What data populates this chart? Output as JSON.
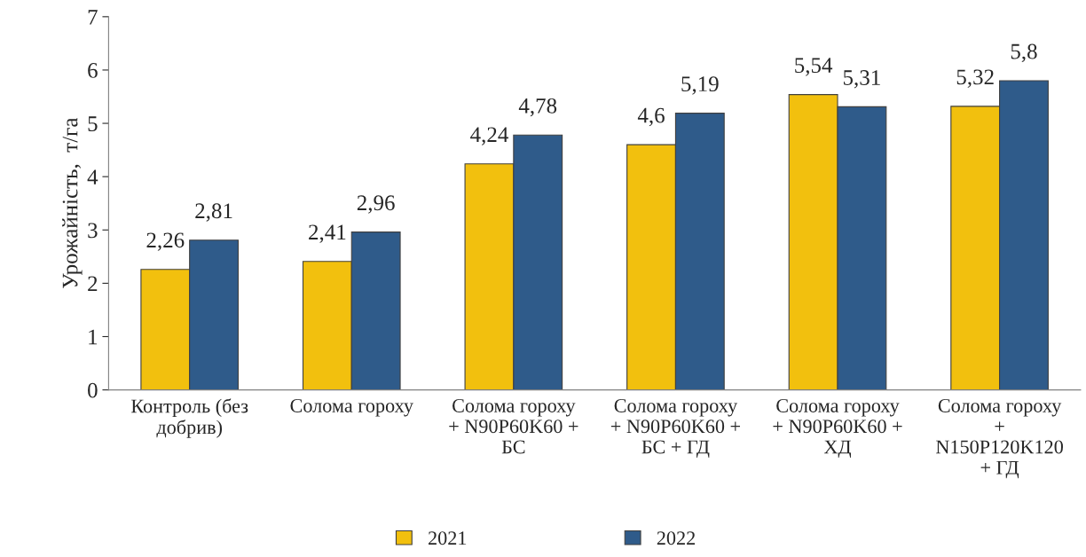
{
  "chart_data": {
    "type": "bar",
    "ylabel": "Урожайність,  т/га",
    "categories": [
      "Контроль (без\nдобрив)",
      "Солома гороху",
      "Солома гороху\n+ N90P60K60 +\nБС",
      "Солома гороху\n+ N90P60K60 +\nБС + ГД",
      "Солома гороху\n+ N90P60K60 +\nХД",
      "Солома гороху\n+\nN150P120K120\n+ ГД"
    ],
    "series": [
      {
        "name": "2021",
        "color": "#f2c00e",
        "values": [
          2.26,
          2.41,
          4.24,
          4.6,
          5.54,
          5.32
        ],
        "value_labels": [
          "2,26",
          "2,41",
          "4,24",
          "4,6",
          "5,54",
          "5,32"
        ]
      },
      {
        "name": "2022",
        "color": "#2f5b8a",
        "values": [
          2.81,
          2.96,
          4.78,
          5.19,
          5.31,
          5.8
        ],
        "value_labels": [
          "2,81",
          "2,96",
          "4,78",
          "5,19",
          "5,31",
          "5,8"
        ]
      }
    ],
    "ylim": [
      0,
      7
    ],
    "yticks": [
      0,
      1,
      2,
      3,
      4,
      5,
      6,
      7
    ],
    "grid": false,
    "legend": "bottom"
  }
}
